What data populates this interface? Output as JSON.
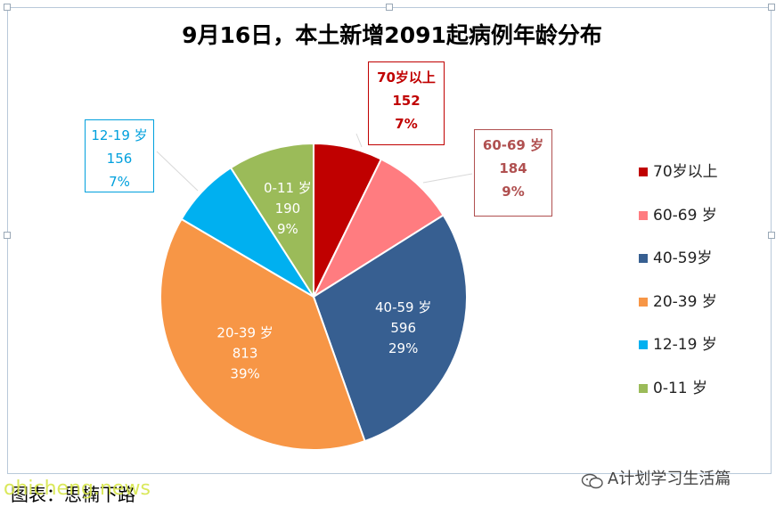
{
  "chart_data": {
    "type": "pie",
    "title": "9月16日，本土新增2091起病例年龄分布",
    "slices": [
      {
        "label": "70岁以上",
        "callout_label": "70岁以上",
        "value": 152,
        "percent": "7%",
        "color": "#c00000",
        "legend": "70岁以上"
      },
      {
        "label": "60-69 岁",
        "callout_label": "60-69 岁",
        "value": 184,
        "percent": "9%",
        "color": "#ff7c80",
        "legend": "60-69 岁"
      },
      {
        "label": "40-59 岁",
        "callout_label": "40-59 岁",
        "value": 596,
        "percent": "29%",
        "color": "#375f91",
        "legend": "40-59岁"
      },
      {
        "label": "20-39 岁",
        "callout_label": "20-39 岁",
        "value": 813,
        "percent": "39%",
        "color": "#f79646",
        "legend": "20-39 岁"
      },
      {
        "label": "12-19 岁",
        "callout_label": "12-19 岁",
        "value": 156,
        "percent": "7%",
        "color": "#00b0f0",
        "legend": "12-19 岁"
      },
      {
        "label": "0-11 岁",
        "callout_label": "0-11 岁",
        "value": 190,
        "percent": "9%",
        "color": "#9bbb59",
        "legend": "0-11 岁"
      }
    ],
    "legend_position": "right"
  },
  "caption": "图表：思楠下路",
  "watermark": "ohicheng.news",
  "source": "A计划学习生活篇"
}
